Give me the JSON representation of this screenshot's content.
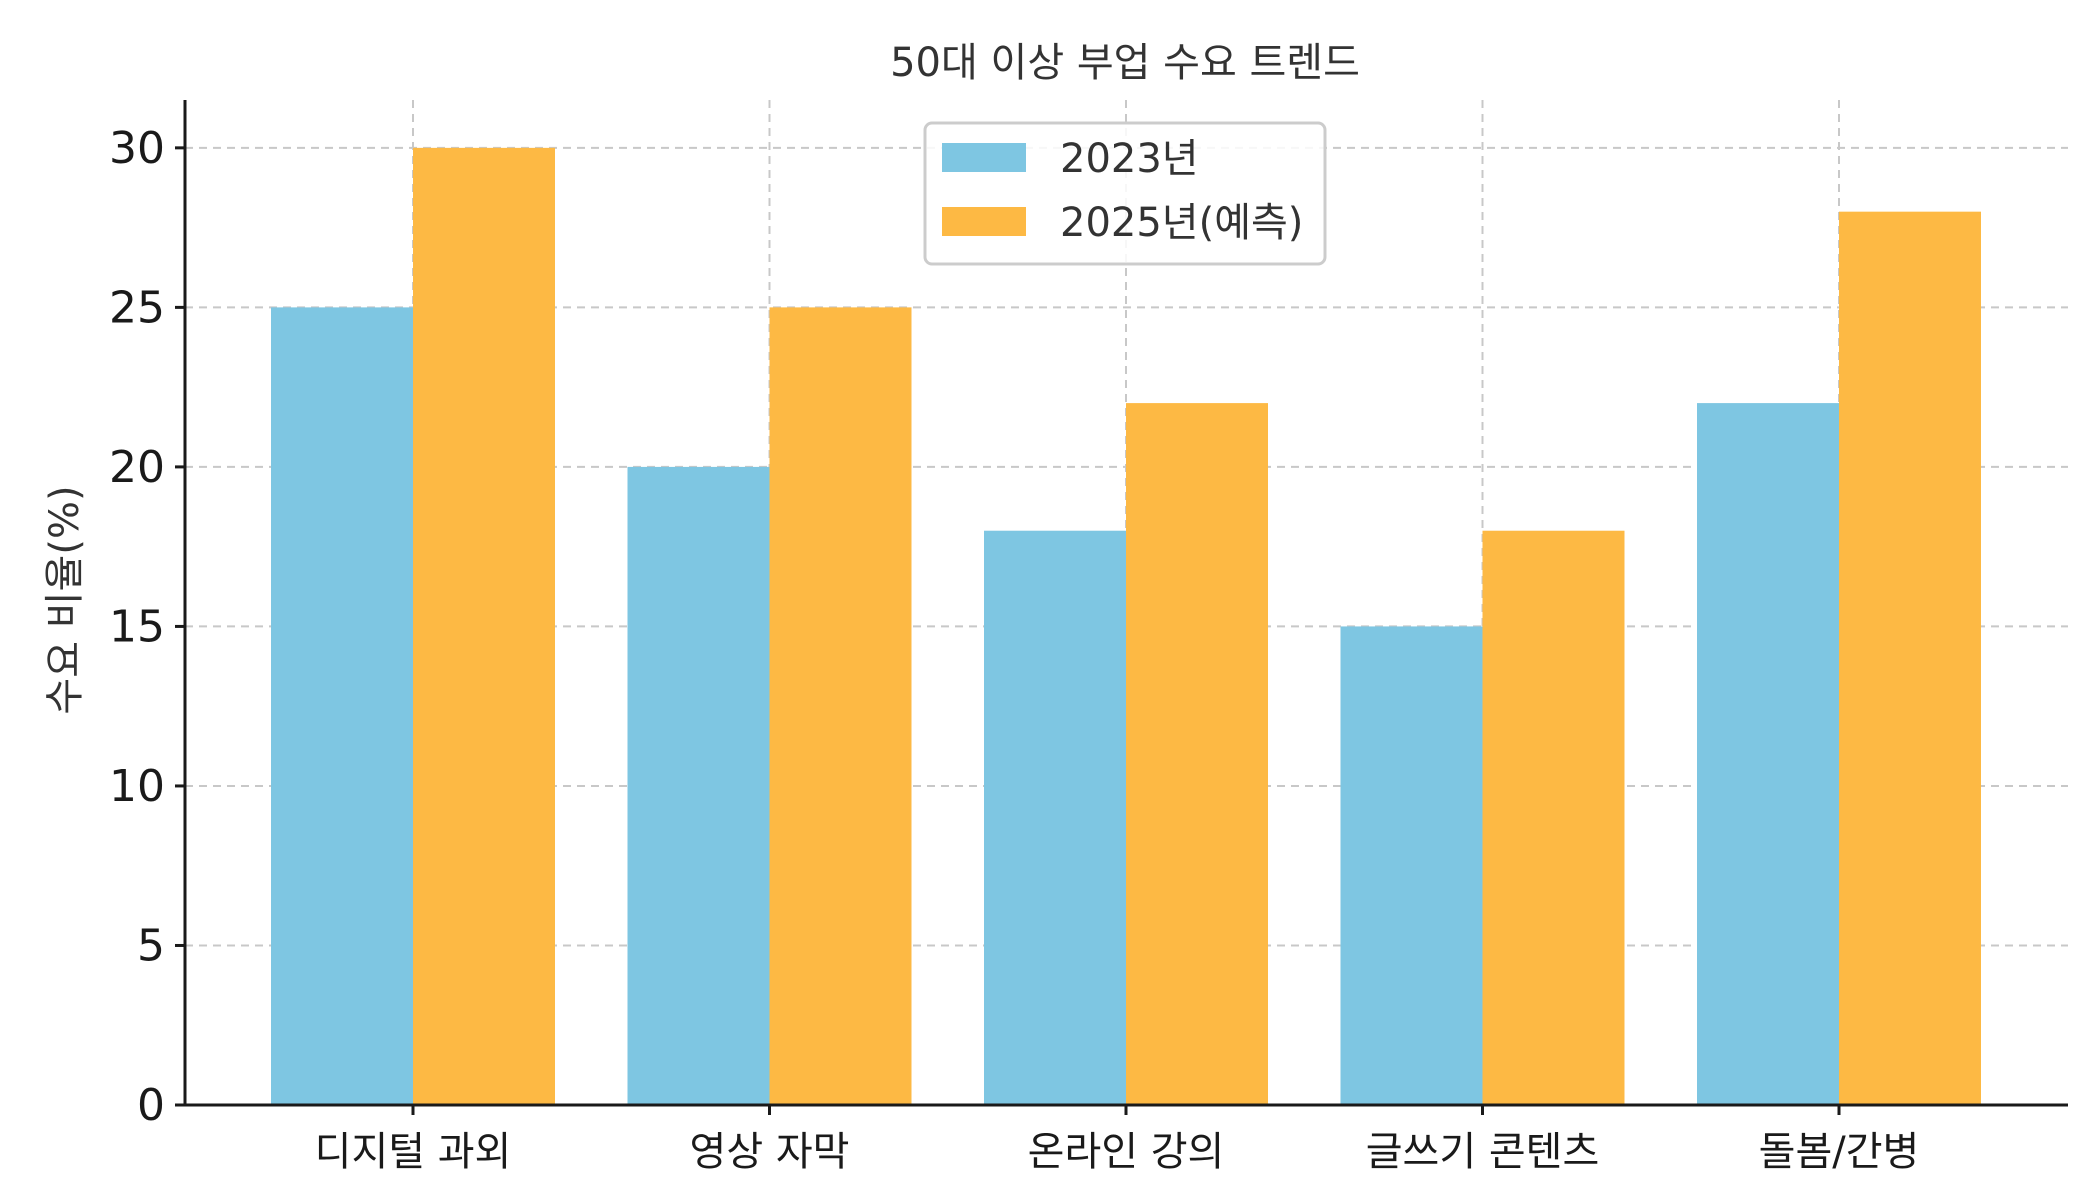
{
  "chart_data": {
    "type": "bar",
    "title": "50대 이상 부업 수요 트렌드",
    "xlabel": "",
    "ylabel": "수요 비율(%)",
    "categories": [
      "디지털 과외",
      "영상 자막",
      "온라인 강의",
      "글쓰기 콘텐츠",
      "돌봄/간병"
    ],
    "series": [
      {
        "name": "2023년",
        "values": [
          25,
          20,
          18,
          15,
          22
        ],
        "color": "#7ec6e2"
      },
      {
        "name": "2025년(예측)",
        "values": [
          30,
          25,
          22,
          18,
          28
        ],
        "color": "#fdb944"
      }
    ],
    "ylim": [
      0,
      31.5
    ],
    "yticks": [
      0,
      5,
      10,
      15,
      20,
      25,
      30
    ],
    "grid": true,
    "legend_position": "top-center"
  }
}
